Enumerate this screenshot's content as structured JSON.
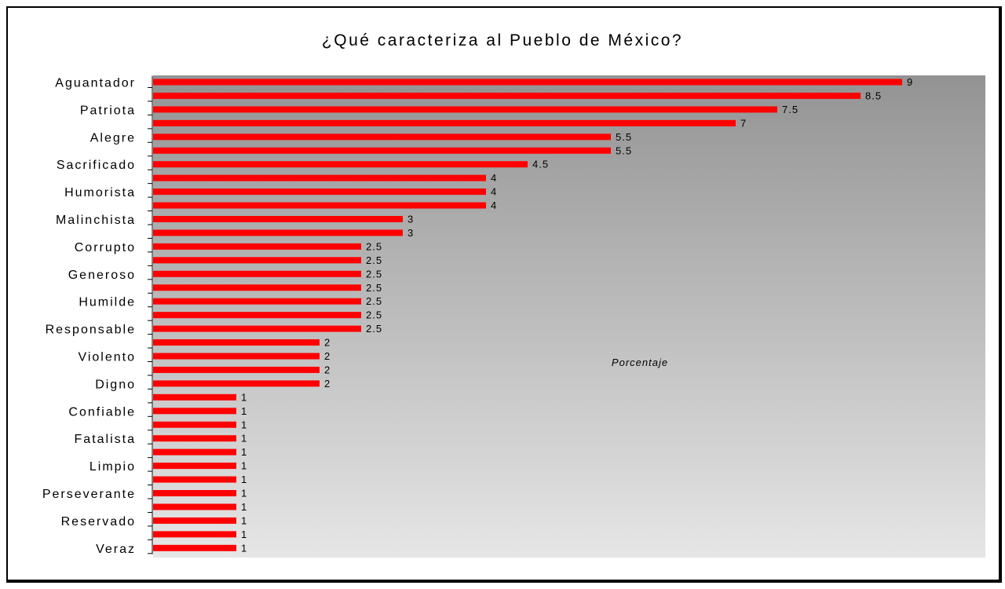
{
  "chart_data": {
    "type": "bar",
    "orientation": "horizontal",
    "title": "¿Qué caracteriza al Pueblo de México?",
    "xlabel": "Porcentaje",
    "categories": [
      "Aguantador",
      "",
      "Patriota",
      "",
      "Alegre",
      "",
      "Sacrificado",
      "",
      "Humorista",
      "",
      "Malinchista",
      "",
      "Corrupto",
      "",
      "Generoso",
      "",
      "Humilde",
      "",
      "Responsable",
      "",
      "Violento",
      "",
      "Digno",
      "",
      "Confiable",
      "",
      "Fatalista",
      "",
      "Limpio",
      "",
      "Perseverante",
      "",
      "Reservado",
      "",
      "Veraz"
    ],
    "values": [
      9,
      8.5,
      7.5,
      7,
      5.5,
      5.5,
      4.5,
      4,
      4,
      4,
      3,
      3,
      2.5,
      2.5,
      2.5,
      2.5,
      2.5,
      2.5,
      2.5,
      2,
      2,
      2,
      2,
      1,
      1,
      1,
      1,
      1,
      1,
      1,
      1,
      1,
      1,
      1,
      1
    ],
    "xlim": [
      0,
      9
    ],
    "colors": {
      "bar": "#ff0000",
      "background_top": "#939393",
      "background_bottom": "#e6e6e6"
    },
    "grid": false,
    "legend": "none"
  }
}
